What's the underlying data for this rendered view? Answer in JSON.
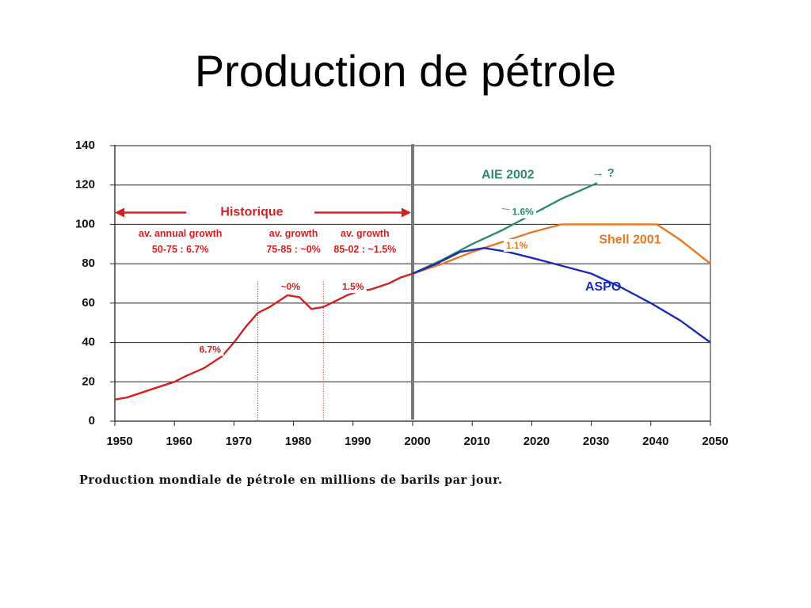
{
  "slide": {
    "title": "Production de pétrole"
  },
  "caption": "Production mondiale de pétrole en millions de barils par jour.",
  "chart_data": {
    "type": "line",
    "title": "",
    "xlabel": "",
    "ylabel": "",
    "xlim": [
      1950,
      2050
    ],
    "ylim": [
      0,
      140
    ],
    "x_ticks": [
      1950,
      1960,
      1970,
      1980,
      1990,
      2000,
      2010,
      2020,
      2030,
      2040,
      2050
    ],
    "y_ticks": [
      0,
      20,
      40,
      60,
      80,
      100,
      120,
      140
    ],
    "grid": "horizontal",
    "vertical_marker": 2000,
    "dotted_markers": [
      1974,
      1985
    ],
    "series": [
      {
        "name": "",
        "color": "#d42020",
        "points": [
          [
            1950,
            11
          ],
          [
            1952,
            12
          ],
          [
            1955,
            15
          ],
          [
            1957,
            17
          ],
          [
            1960,
            20
          ],
          [
            1962,
            23
          ],
          [
            1965,
            27
          ],
          [
            1968,
            33
          ],
          [
            1970,
            40
          ],
          [
            1972,
            48
          ],
          [
            1974,
            55
          ],
          [
            1976,
            58
          ],
          [
            1978,
            62
          ],
          [
            1979,
            64
          ],
          [
            1981,
            63
          ],
          [
            1983,
            57
          ],
          [
            1985,
            58
          ],
          [
            1987,
            61
          ],
          [
            1989,
            64
          ],
          [
            1991,
            66
          ],
          [
            1993,
            67
          ],
          [
            1996,
            70
          ],
          [
            1998,
            73
          ],
          [
            2000,
            75
          ],
          [
            2002,
            77
          ]
        ]
      },
      {
        "name": "AIE 2002",
        "color": "#2e8b6e",
        "points": [
          [
            2000,
            75
          ],
          [
            2005,
            82
          ],
          [
            2010,
            90
          ],
          [
            2015,
            97
          ],
          [
            2020,
            105
          ],
          [
            2025,
            113
          ],
          [
            2031,
            121
          ]
        ]
      },
      {
        "name": "Shell 2001",
        "color": "#e87722",
        "points": [
          [
            2000,
            75
          ],
          [
            2005,
            80
          ],
          [
            2010,
            86
          ],
          [
            2015,
            91
          ],
          [
            2020,
            96
          ],
          [
            2025,
            100
          ],
          [
            2030,
            100
          ],
          [
            2035,
            100
          ],
          [
            2041,
            100
          ],
          [
            2045,
            92
          ],
          [
            2050,
            80
          ]
        ]
      },
      {
        "name": "ASPO",
        "color": "#1c2ab8",
        "points": [
          [
            2000,
            75
          ],
          [
            2004,
            80
          ],
          [
            2008,
            86
          ],
          [
            2012,
            88
          ],
          [
            2016,
            86
          ],
          [
            2020,
            83
          ],
          [
            2025,
            79
          ],
          [
            2030,
            75
          ],
          [
            2035,
            68
          ],
          [
            2040,
            60
          ],
          [
            2045,
            51
          ],
          [
            2050,
            40
          ]
        ]
      }
    ],
    "annotations": [
      {
        "text": "Historique",
        "x": 1973,
        "y": 106,
        "color": "#d42020",
        "size": 16
      },
      {
        "text": "av. annual growth",
        "x": 1961,
        "y": 95,
        "color": "#d42020",
        "size": 12.5
      },
      {
        "text": "50-75 : 6.7%",
        "x": 1961,
        "y": 87,
        "color": "#d42020",
        "size": 12.5
      },
      {
        "text": "av. growth",
        "x": 1980,
        "y": 95,
        "color": "#d42020",
        "size": 12.5
      },
      {
        "text": "75-85 : ~0%",
        "x": 1980,
        "y": 87,
        "color": "#d42020",
        "size": 12.5
      },
      {
        "text": "av. growth",
        "x": 1992,
        "y": 95,
        "color": "#d42020",
        "size": 12.5
      },
      {
        "text": "85-02 : ~1.5%",
        "x": 1992,
        "y": 87,
        "color": "#d42020",
        "size": 12.5
      },
      {
        "text": "~0%",
        "x": 1979.5,
        "y": 68,
        "color": "#d42020",
        "size": 12
      },
      {
        "text": "1.5%",
        "x": 1990,
        "y": 68,
        "color": "#d42020",
        "size": 12
      },
      {
        "text": "6.7%",
        "x": 1966,
        "y": 36,
        "color": "#d42020",
        "size": 12
      },
      {
        "text": "AIE 2002",
        "x": 2016,
        "y": 125,
        "color": "#2e8b6e",
        "size": 16
      },
      {
        "text": "→ ?",
        "x": 2032,
        "y": 126,
        "color": "#2e8b6e",
        "size": 15
      },
      {
        "text": "1.6%",
        "x": 2018.5,
        "y": 106,
        "color": "#2e8b6e",
        "size": 12
      },
      {
        "text": "1.1%",
        "x": 2017.5,
        "y": 89,
        "color": "#e87722",
        "size": 12
      },
      {
        "text": "Shell 2001",
        "x": 2036.5,
        "y": 92,
        "color": "#e87722",
        "size": 16
      },
      {
        "text": "ASPO",
        "x": 2032,
        "y": 68,
        "color": "#1c2ab8",
        "size": 16
      }
    ]
  }
}
